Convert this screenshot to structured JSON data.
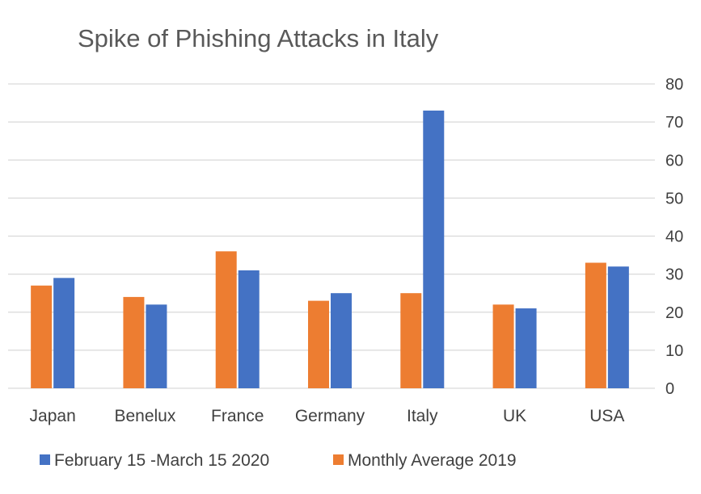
{
  "chart_data": {
    "type": "bar",
    "title": "Spike of Phishing Attacks in Italy",
    "xlabel": "",
    "ylabel": "",
    "ylim": [
      0,
      80
    ],
    "yticks": [
      0,
      10,
      20,
      30,
      40,
      50,
      60,
      70,
      80
    ],
    "y_axis_side": "right",
    "grid": true,
    "legend_position": "bottom",
    "categories": [
      "Japan",
      "Benelux",
      "France",
      "Germany",
      "Italy",
      "UK",
      "USA"
    ],
    "series": [
      {
        "name": "Monthly Average 2019",
        "color": "#ED7D31",
        "values": [
          27,
          24,
          36,
          23,
          25,
          22,
          33
        ]
      },
      {
        "name": "February 15 -March 15 2020",
        "color": "#4472C4",
        "values": [
          29,
          22,
          31,
          25,
          73,
          21,
          32
        ]
      }
    ],
    "legend_order": [
      "February 15 -March 15 2020",
      "Monthly Average 2019"
    ]
  }
}
